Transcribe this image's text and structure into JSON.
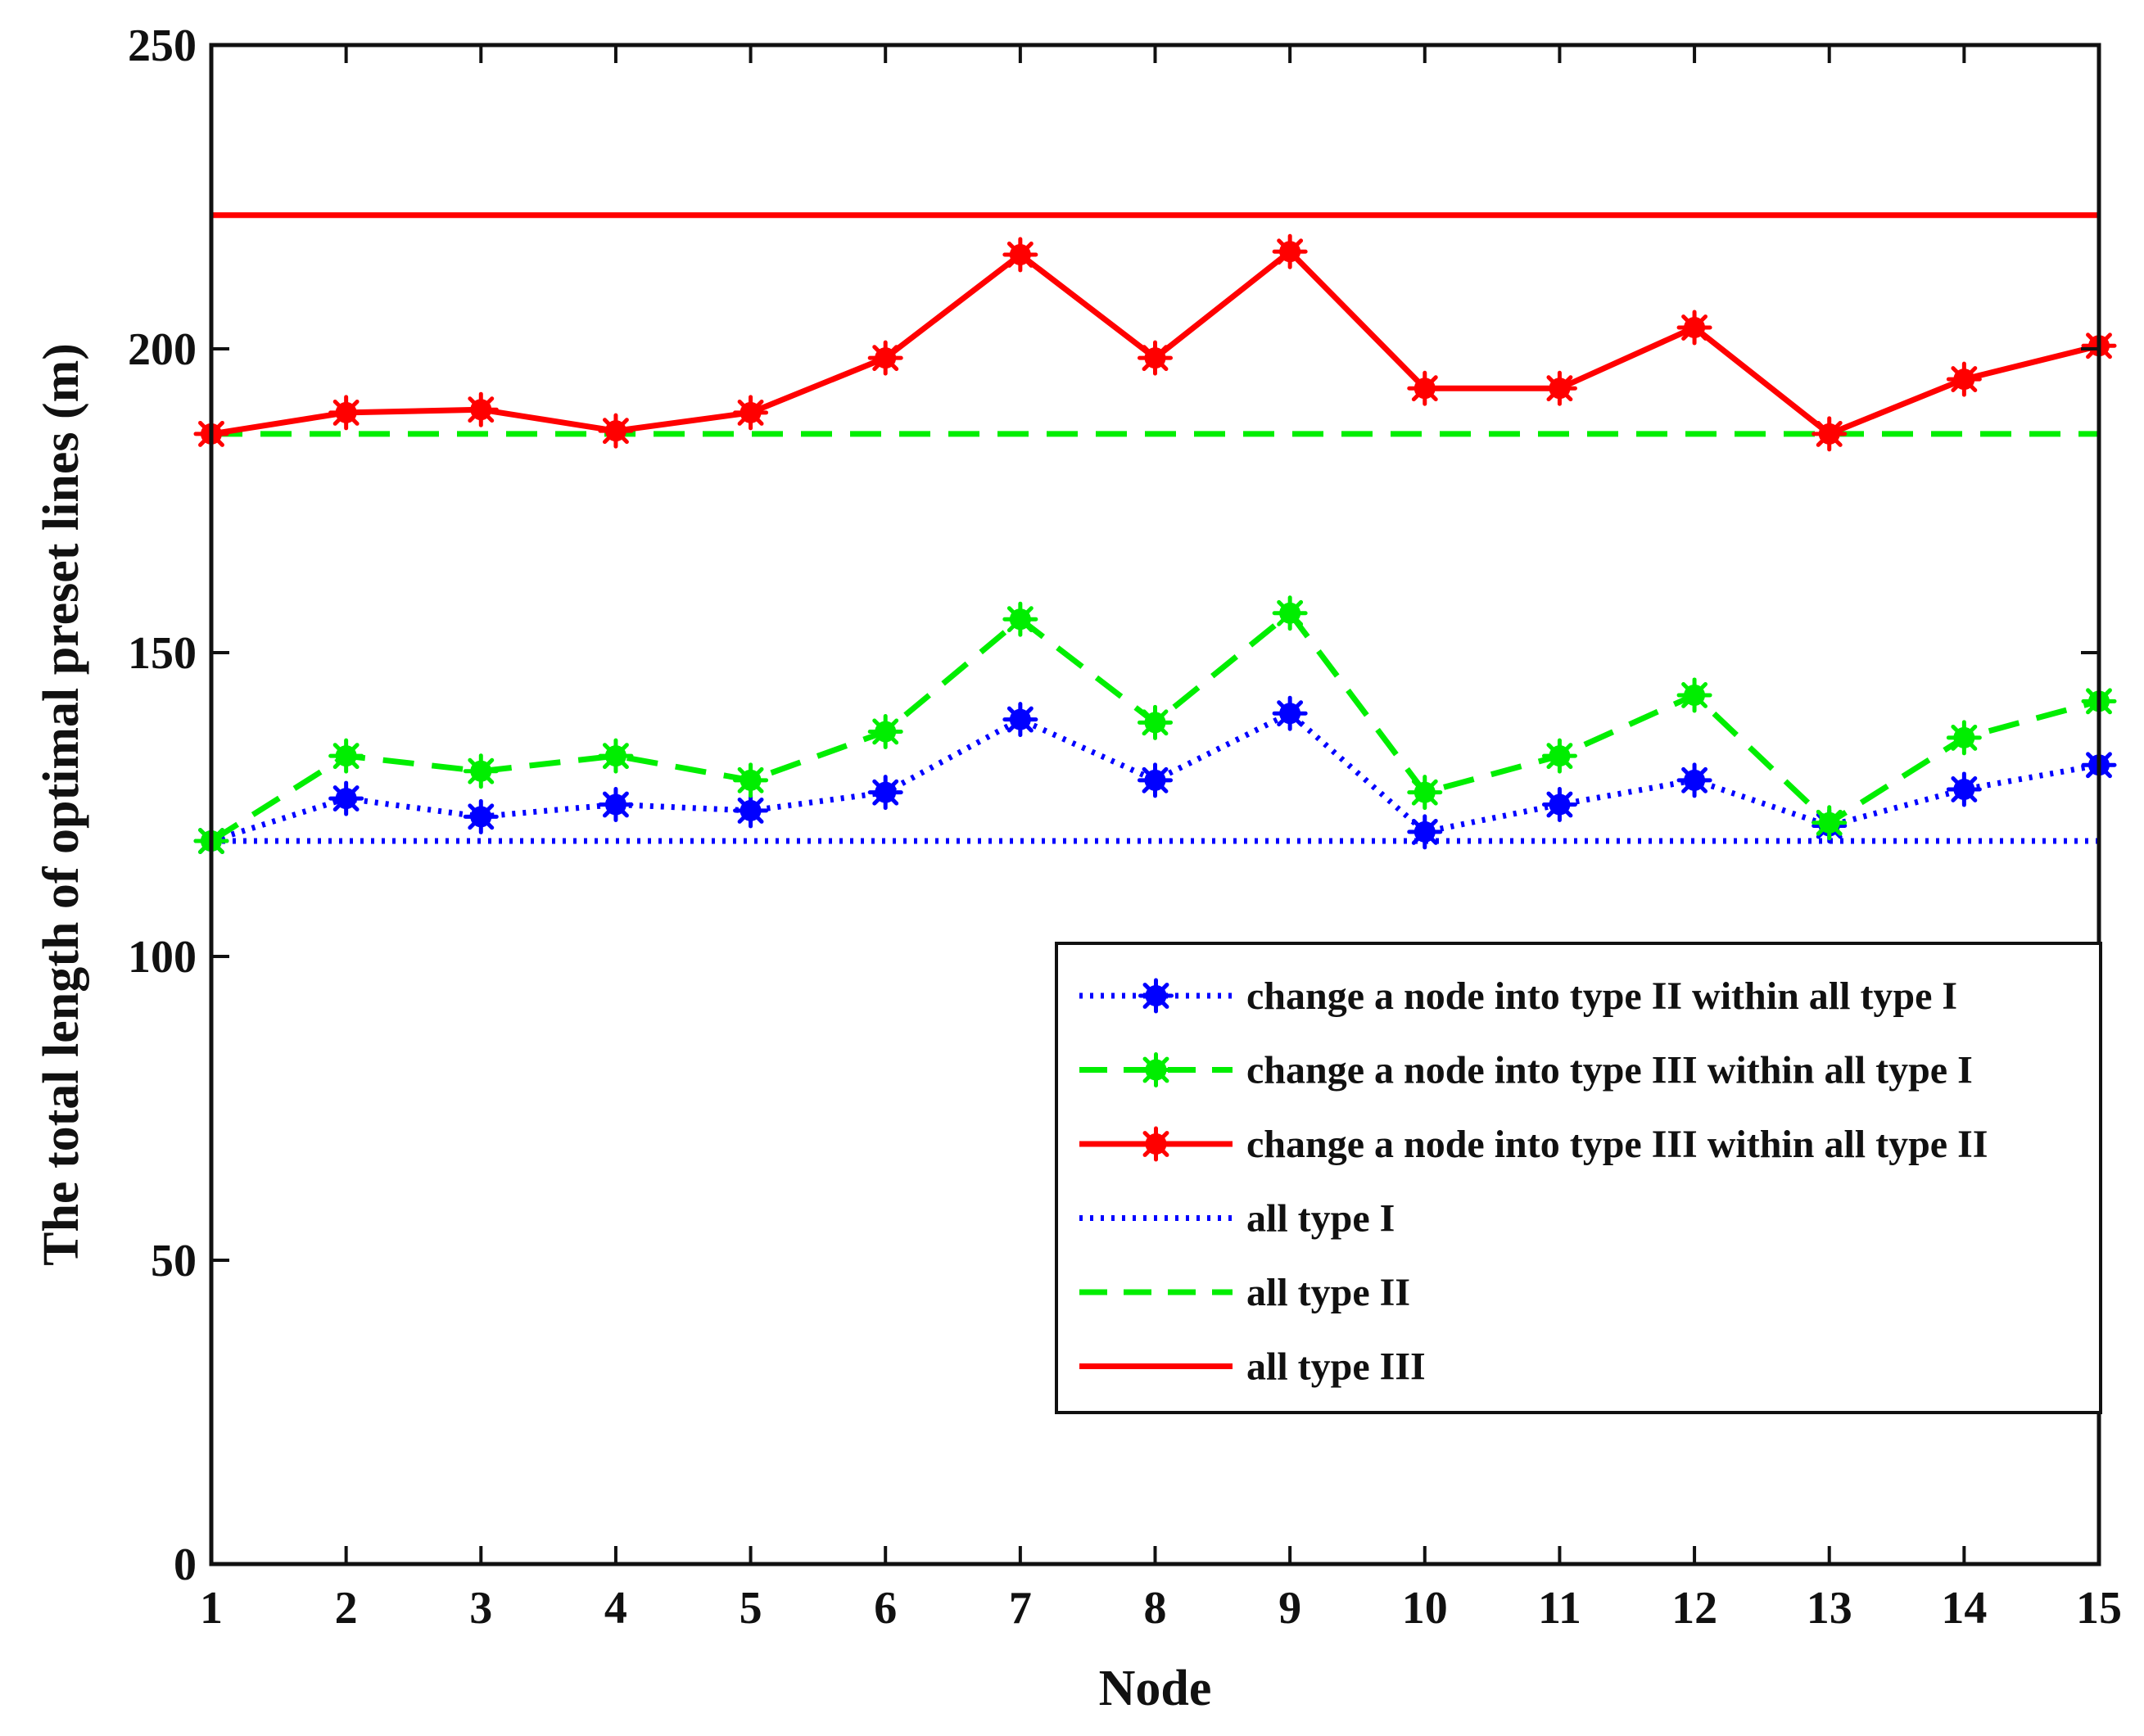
{
  "chart_data": {
    "type": "line",
    "title": "",
    "xlabel": "Node",
    "ylabel": "The total length of optimal preset lines (m)",
    "x": [
      1,
      2,
      3,
      4,
      5,
      6,
      7,
      8,
      9,
      10,
      11,
      12,
      13,
      14,
      15
    ],
    "xticks": [
      "1",
      "2",
      "3",
      "4",
      "5",
      "6",
      "7",
      "8",
      "9",
      "10",
      "11",
      "12",
      "13",
      "14",
      "15"
    ],
    "xlim": [
      1,
      15
    ],
    "ylim": [
      0,
      250
    ],
    "yticks": [
      "0",
      "50",
      "100",
      "150",
      "200",
      "250"
    ],
    "legend_position": "lower-right",
    "series": [
      {
        "name": "change a node into type II within all type I",
        "color": "#0000ff",
        "style": "dotted",
        "marker": "asterisk",
        "values": [
          119,
          126,
          123,
          125,
          124,
          127,
          139,
          129,
          140,
          120.5,
          125,
          129,
          121.5,
          127.5,
          131.5
        ]
      },
      {
        "name": "change a node into type III within all type I",
        "color": "#00ee00",
        "style": "dashed",
        "marker": "asterisk",
        "values": [
          119,
          133,
          130.5,
          133,
          129,
          137,
          155.5,
          138.5,
          156.5,
          127,
          133,
          143,
          122,
          136,
          142
        ]
      },
      {
        "name": "change a node into type III within all type II",
        "color": "#ff0000",
        "style": "solid",
        "marker": "asterisk",
        "values": [
          186,
          189.5,
          190,
          186.5,
          189.5,
          198.5,
          215.5,
          198.5,
          216,
          193.5,
          193.5,
          203.5,
          186,
          195,
          200.5
        ]
      },
      {
        "name": "all type I",
        "color": "#0000ff",
        "style": "dotted",
        "marker": "none",
        "values": [
          119,
          119,
          119,
          119,
          119,
          119,
          119,
          119,
          119,
          119,
          119,
          119,
          119,
          119,
          119
        ]
      },
      {
        "name": "all type II",
        "color": "#00ee00",
        "style": "dashed",
        "marker": "none",
        "values": [
          186,
          186,
          186,
          186,
          186,
          186,
          186,
          186,
          186,
          186,
          186,
          186,
          186,
          186,
          186
        ]
      },
      {
        "name": "all type III",
        "color": "#ff0000",
        "style": "solid",
        "marker": "none",
        "values": [
          222,
          222,
          222,
          222,
          222,
          222,
          222,
          222,
          222,
          222,
          222,
          222,
          222,
          222,
          222
        ]
      }
    ]
  }
}
